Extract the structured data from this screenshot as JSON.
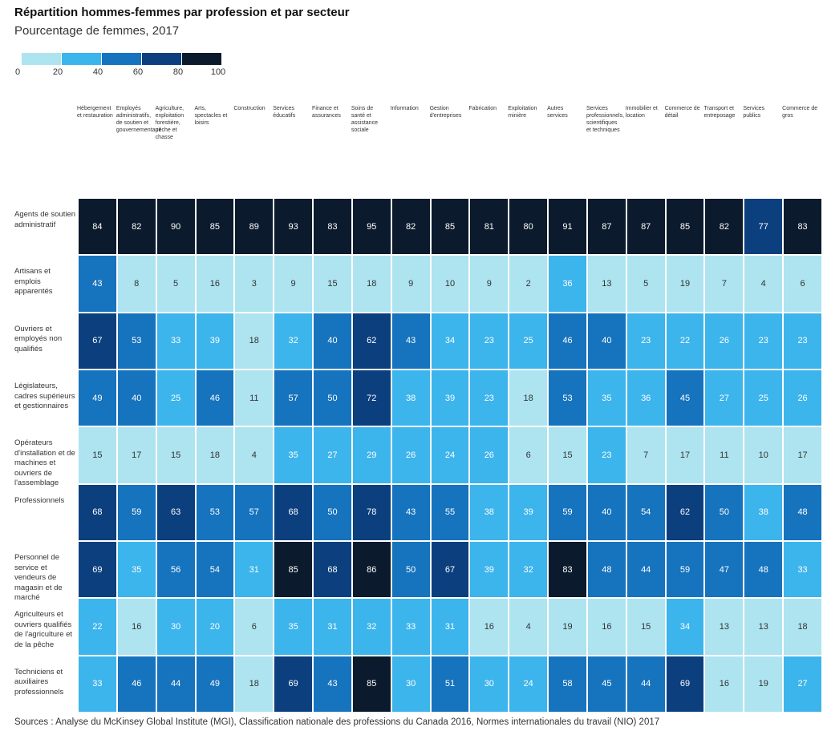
{
  "chart_data": {
    "type": "heatmap",
    "title": "Répartition hommes-femmes par profession et par secteur",
    "subtitle": "Pourcentage de femmes, 2017",
    "source": "Sources : Analyse du McKinsey Global Institute (MGI), Classification nationale des professions du Canada 2016, Normes internationales du travail (NIO) 2017",
    "color_scale": {
      "bins": [
        0,
        20,
        40,
        60,
        80,
        100
      ],
      "colors": [
        "#aee3f0",
        "#3cb4ec",
        "#1673bd",
        "#0c3f7e",
        "#0b1a2c"
      ]
    },
    "x_categories": [
      "Hébergement et restauration",
      "Employés administratifs, de soutien et gouvernementaux",
      "Agriculture, exploitation forestière, pêche et chasse",
      "Arts, spectacles et loisirs",
      "Construction",
      "Services éducatifs",
      "Finance et assurances",
      "Soins de santé et assistance sociale",
      "Information",
      "Gestion d'entreprises",
      "Fabrication",
      "Exploitation minière",
      "Autres services",
      "Services professionnels, scientifiques et techniques",
      "Immobilier et location",
      "Commerce de détail",
      "Transport et entreposage",
      "Services publics",
      "Commerce de gros"
    ],
    "y_categories": [
      "Agents de soutien administratif",
      "Artisans et emplois apparentés",
      "Ouvriers et employés non qualifiés",
      "Législateurs, cadres supérieurs et gestionnaires",
      "Opérateurs d'installation et de machines et ouvriers de l'assemblage",
      "Professionnels",
      "Personnel de service et vendeurs de magasin et de marché",
      "Agriculteurs et ouvriers qualifiés de l'agriculture et de la pêche",
      "Techniciens et auxiliaires professionnels"
    ],
    "values": [
      [
        84,
        82,
        90,
        85,
        89,
        93,
        83,
        95,
        82,
        85,
        81,
        80,
        91,
        87,
        87,
        85,
        82,
        77,
        83
      ],
      [
        43,
        8,
        5,
        16,
        3,
        9,
        15,
        18,
        9,
        10,
        9,
        2,
        36,
        13,
        5,
        19,
        7,
        4,
        6
      ],
      [
        67,
        53,
        33,
        39,
        18,
        32,
        40,
        62,
        43,
        34,
        23,
        25,
        46,
        40,
        23,
        22,
        26,
        23,
        23
      ],
      [
        49,
        40,
        25,
        46,
        11,
        57,
        50,
        72,
        38,
        39,
        23,
        18,
        53,
        35,
        36,
        45,
        27,
        25,
        26
      ],
      [
        15,
        17,
        15,
        18,
        4,
        35,
        27,
        29,
        26,
        24,
        26,
        6,
        15,
        23,
        7,
        17,
        11,
        10,
        17
      ],
      [
        68,
        59,
        63,
        53,
        57,
        68,
        50,
        78,
        43,
        55,
        38,
        39,
        59,
        40,
        54,
        62,
        50,
        38,
        48
      ],
      [
        69,
        35,
        56,
        54,
        31,
        85,
        68,
        86,
        50,
        67,
        39,
        32,
        83,
        48,
        44,
        59,
        47,
        48,
        33
      ],
      [
        22,
        16,
        30,
        20,
        6,
        35,
        31,
        32,
        33,
        31,
        16,
        4,
        19,
        16,
        15,
        34,
        13,
        13,
        18
      ],
      [
        33,
        46,
        44,
        49,
        18,
        69,
        43,
        85,
        30,
        51,
        30,
        24,
        58,
        45,
        44,
        69,
        16,
        19,
        27
      ]
    ]
  }
}
